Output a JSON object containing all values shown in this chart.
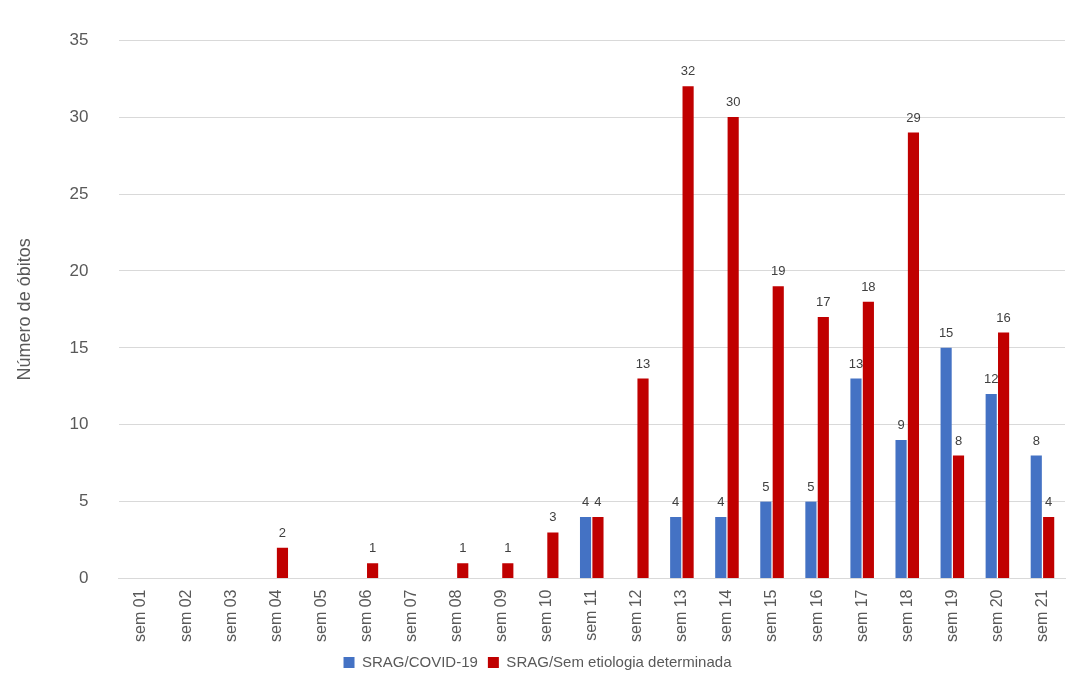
{
  "chart_data": {
    "type": "bar",
    "ylabel": "Número de óbitos",
    "categories": [
      "sem 01",
      "sem 02",
      "sem 03",
      "sem 04",
      "sem 05",
      "sem 06",
      "sem 07",
      "sem 08",
      "sem 09",
      "sem 10",
      "sem 11",
      "sem 12",
      "sem 13",
      "sem 14",
      "sem 15",
      "sem 16",
      "sem 17",
      "sem 18",
      "sem 19",
      "sem 20",
      "sem 21"
    ],
    "series": [
      {
        "name": "SRAG/COVID-19",
        "color": "#4472c4",
        "values": [
          null,
          null,
          null,
          null,
          null,
          null,
          null,
          null,
          null,
          null,
          4,
          null,
          4,
          4,
          5,
          5,
          13,
          9,
          15,
          12,
          8
        ]
      },
      {
        "name": "SRAG/Sem etiologia determinada",
        "color": "#c00000",
        "values": [
          null,
          null,
          null,
          2,
          null,
          1,
          null,
          1,
          1,
          3,
          4,
          13,
          32,
          30,
          19,
          17,
          18,
          29,
          8,
          16,
          4
        ]
      }
    ],
    "ylim": [
      0,
      35
    ],
    "yticks": [
      0,
      5,
      10,
      15,
      20,
      25,
      30,
      35
    ],
    "grid": "y",
    "legend": "bottom",
    "data_labels": true
  }
}
